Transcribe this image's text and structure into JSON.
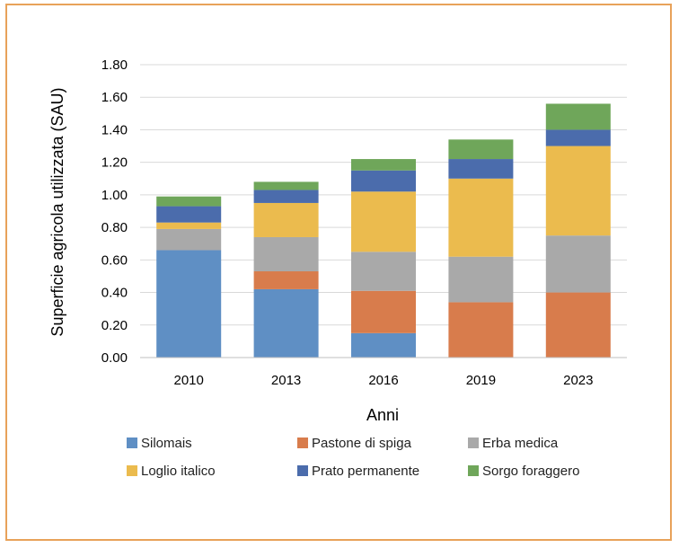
{
  "chart_data": {
    "type": "bar",
    "stacked": true,
    "title": "",
    "xlabel": "Anni",
    "ylabel": "Superficie agricola utilizzata (SAU)",
    "ylim": [
      0,
      1.8
    ],
    "yticks": [
      "0.00",
      "0.20",
      "0.40",
      "0.60",
      "0.80",
      "1.00",
      "1.20",
      "1.40",
      "1.60",
      "1.80"
    ],
    "grid": true,
    "legend_position": "bottom",
    "categories": [
      "2010",
      "2013",
      "2016",
      "2019",
      "2023"
    ],
    "series": [
      {
        "name": "Silomais",
        "color": "#5f8fc4",
        "values": [
          0.66,
          0.42,
          0.15,
          0.0,
          0.0
        ]
      },
      {
        "name": "Pastone di spiga",
        "color": "#d87c4c",
        "values": [
          0.0,
          0.11,
          0.26,
          0.34,
          0.4
        ]
      },
      {
        "name": "Erba medica",
        "color": "#a9a9a9",
        "values": [
          0.13,
          0.21,
          0.24,
          0.28,
          0.35
        ]
      },
      {
        "name": "Loglio italico",
        "color": "#ebbb4e",
        "values": [
          0.04,
          0.21,
          0.37,
          0.48,
          0.55
        ]
      },
      {
        "name": "Prato permanente",
        "color": "#4b6cac",
        "values": [
          0.1,
          0.08,
          0.13,
          0.12,
          0.1
        ]
      },
      {
        "name": "Sorgo foraggero",
        "color": "#6fa65a",
        "values": [
          0.06,
          0.05,
          0.07,
          0.12,
          0.16
        ]
      }
    ]
  }
}
